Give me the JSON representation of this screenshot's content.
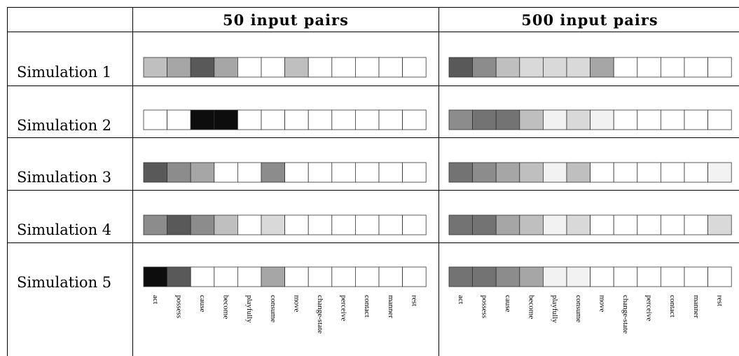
{
  "chart_data": {
    "type": "heatmap",
    "value_meaning": "grayscale darkness (0 = white, 1 = black)",
    "categories": [
      "act",
      "possess",
      "cause",
      "become",
      "playfully",
      "consume",
      "move",
      "change-state",
      "perceive",
      "contact",
      "manner",
      "rest"
    ],
    "columns": [
      {
        "title": "50 input pairs",
        "rows": [
          {
            "label": "Simulation 1",
            "values": [
              0.25,
              0.35,
              0.65,
              0.35,
              0,
              0,
              0.25,
              0,
              0,
              0,
              0,
              0
            ]
          },
          {
            "label": "Simulation 2",
            "values": [
              0,
              0,
              0.95,
              0.95,
              0,
              0,
              0,
              0,
              0,
              0,
              0,
              0
            ]
          },
          {
            "label": "Simulation 3",
            "values": [
              0.65,
              0.45,
              0.35,
              0,
              0,
              0.45,
              0,
              0,
              0,
              0,
              0,
              0
            ]
          },
          {
            "label": "Simulation 4",
            "values": [
              0.45,
              0.65,
              0.45,
              0.25,
              0,
              0.15,
              0,
              0,
              0,
              0,
              0,
              0
            ]
          },
          {
            "label": "Simulation 5",
            "values": [
              0.95,
              0.65,
              0,
              0,
              0,
              0.35,
              0,
              0,
              0,
              0,
              0,
              0
            ]
          }
        ]
      },
      {
        "title": "500 input pairs",
        "rows": [
          {
            "label": "Simulation 1",
            "values": [
              0.65,
              0.45,
              0.25,
              0.15,
              0.15,
              0.15,
              0.35,
              0,
              0,
              0,
              0,
              0
            ]
          },
          {
            "label": "Simulation 2",
            "values": [
              0.45,
              0.55,
              0.55,
              0.25,
              0.05,
              0.15,
              0.05,
              0,
              0,
              0,
              0,
              0
            ]
          },
          {
            "label": "Simulation 3",
            "values": [
              0.55,
              0.45,
              0.35,
              0.25,
              0.05,
              0.25,
              0,
              0,
              0,
              0,
              0,
              0.05
            ]
          },
          {
            "label": "Simulation 4",
            "values": [
              0.55,
              0.55,
              0.35,
              0.25,
              0.05,
              0.15,
              0,
              0,
              0,
              0,
              0,
              0.15
            ]
          },
          {
            "label": "Simulation 5",
            "values": [
              0.55,
              0.55,
              0.45,
              0.35,
              0.05,
              0.05,
              0,
              0,
              0,
              0,
              0,
              0
            ]
          }
        ]
      }
    ]
  }
}
